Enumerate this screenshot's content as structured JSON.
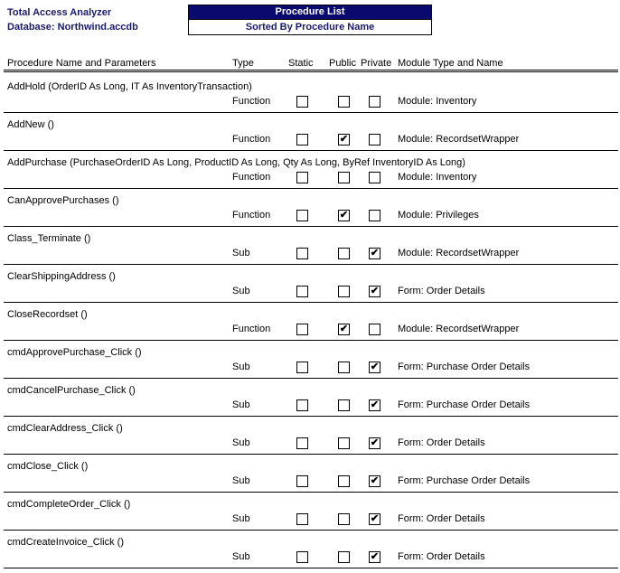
{
  "header": {
    "app": "Total Access Analyzer",
    "database": "Database: Northwind.accdb",
    "title": "Procedure List",
    "subtitle": "Sorted By Procedure Name"
  },
  "columns": {
    "name": "Procedure Name and Parameters",
    "type": "Type",
    "static": "Static",
    "public": "Public",
    "private": "Private",
    "module": "Module Type and  Name"
  },
  "rows": [
    {
      "name": "AddHold (OrderID As Long, IT As InventoryTransaction)",
      "type": "Function",
      "static": false,
      "public": false,
      "private": false,
      "module": "Module: Inventory"
    },
    {
      "name": "AddNew ()",
      "type": "Function",
      "static": false,
      "public": true,
      "private": false,
      "module": "Module: RecordsetWrapper"
    },
    {
      "name": "AddPurchase (PurchaseOrderID As Long, ProductID As Long, Qty As Long, ByRef InventoryID As Long)",
      "type": "Function",
      "static": false,
      "public": false,
      "private": false,
      "module": "Module: Inventory"
    },
    {
      "name": "CanApprovePurchases ()",
      "type": "Function",
      "static": false,
      "public": true,
      "private": false,
      "module": "Module: Privileges"
    },
    {
      "name": "Class_Terminate ()",
      "type": "Sub",
      "static": false,
      "public": false,
      "private": true,
      "module": "Module: RecordsetWrapper"
    },
    {
      "name": "ClearShippingAddress ()",
      "type": "Sub",
      "static": false,
      "public": false,
      "private": true,
      "module": "Form: Order Details"
    },
    {
      "name": "CloseRecordset ()",
      "type": "Function",
      "static": false,
      "public": true,
      "private": false,
      "module": "Module: RecordsetWrapper"
    },
    {
      "name": "cmdApprovePurchase_Click ()",
      "type": "Sub",
      "static": false,
      "public": false,
      "private": true,
      "module": "Form: Purchase Order Details"
    },
    {
      "name": "cmdCancelPurchase_Click ()",
      "type": "Sub",
      "static": false,
      "public": false,
      "private": true,
      "module": "Form: Purchase Order Details"
    },
    {
      "name": "cmdClearAddress_Click ()",
      "type": "Sub",
      "static": false,
      "public": false,
      "private": true,
      "module": "Form: Order Details"
    },
    {
      "name": "cmdClose_Click ()",
      "type": "Sub",
      "static": false,
      "public": false,
      "private": true,
      "module": "Form: Purchase Order Details"
    },
    {
      "name": "cmdCompleteOrder_Click ()",
      "type": "Sub",
      "static": false,
      "public": false,
      "private": true,
      "module": "Form: Order Details"
    },
    {
      "name": "cmdCreateInvoice_Click ()",
      "type": "Sub",
      "static": false,
      "public": false,
      "private": true,
      "module": "Form: Order Details"
    }
  ]
}
